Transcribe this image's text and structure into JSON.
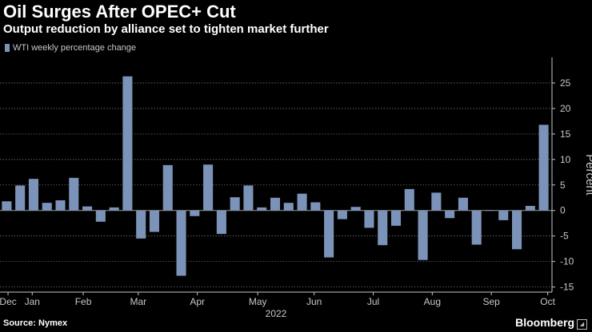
{
  "header": {
    "title": "Oil Surges After OPEC+ Cut",
    "subtitle": "Output reduction by alliance set to tighten market further"
  },
  "footer": {
    "source": "Source: Nymex",
    "brand": "Bloomberg"
  },
  "colors": {
    "background": "#000000",
    "bar": "#7b93b8",
    "grid": "#6e6e6e",
    "zero_line": "#9a9a9a",
    "axis_text": "#c8c8c8"
  },
  "chart_data": {
    "type": "bar",
    "title": "Oil Surges After OPEC+ Cut",
    "subtitle": "Output reduction by alliance set to tighten market further",
    "legend": [
      "WTI weekly percentage change"
    ],
    "legend_position": "top-left",
    "ylabel": "Percent",
    "ylim": [
      -16,
      30
    ],
    "yticks": [
      -15,
      -10,
      -5,
      0,
      5,
      10,
      15,
      20,
      25
    ],
    "y_axis_side": "right",
    "grid": true,
    "x_year_label": "2022",
    "x_month_labels": [
      {
        "label": "Dec",
        "week": 0.6
      },
      {
        "label": "Jan",
        "week": 2.4
      },
      {
        "label": "Feb",
        "week": 6.2
      },
      {
        "label": "Mar",
        "week": 10.3
      },
      {
        "label": "Apr",
        "week": 14.7
      },
      {
        "label": "May",
        "week": 19.2
      },
      {
        "label": "Jun",
        "week": 23.4
      },
      {
        "label": "Jul",
        "week": 27.8
      },
      {
        "label": "Aug",
        "week": 32.2
      },
      {
        "label": "Sep",
        "week": 36.6
      },
      {
        "label": "Oct",
        "week": 40.8
      }
    ],
    "series": [
      {
        "name": "WTI weekly percentage change",
        "values": [
          1.8,
          4.9,
          6.2,
          1.5,
          2.0,
          6.4,
          0.8,
          -2.2,
          0.6,
          26.3,
          -5.5,
          -4.2,
          8.9,
          -12.8,
          -1.1,
          9.0,
          -4.6,
          2.6,
          4.9,
          0.6,
          2.5,
          1.5,
          3.3,
          1.6,
          -9.2,
          -1.7,
          0.7,
          -3.4,
          -6.8,
          -3.0,
          4.2,
          -9.7,
          3.5,
          -1.5,
          2.5,
          -6.7,
          0.1,
          -1.9,
          -7.6,
          0.9,
          16.8
        ]
      }
    ]
  }
}
